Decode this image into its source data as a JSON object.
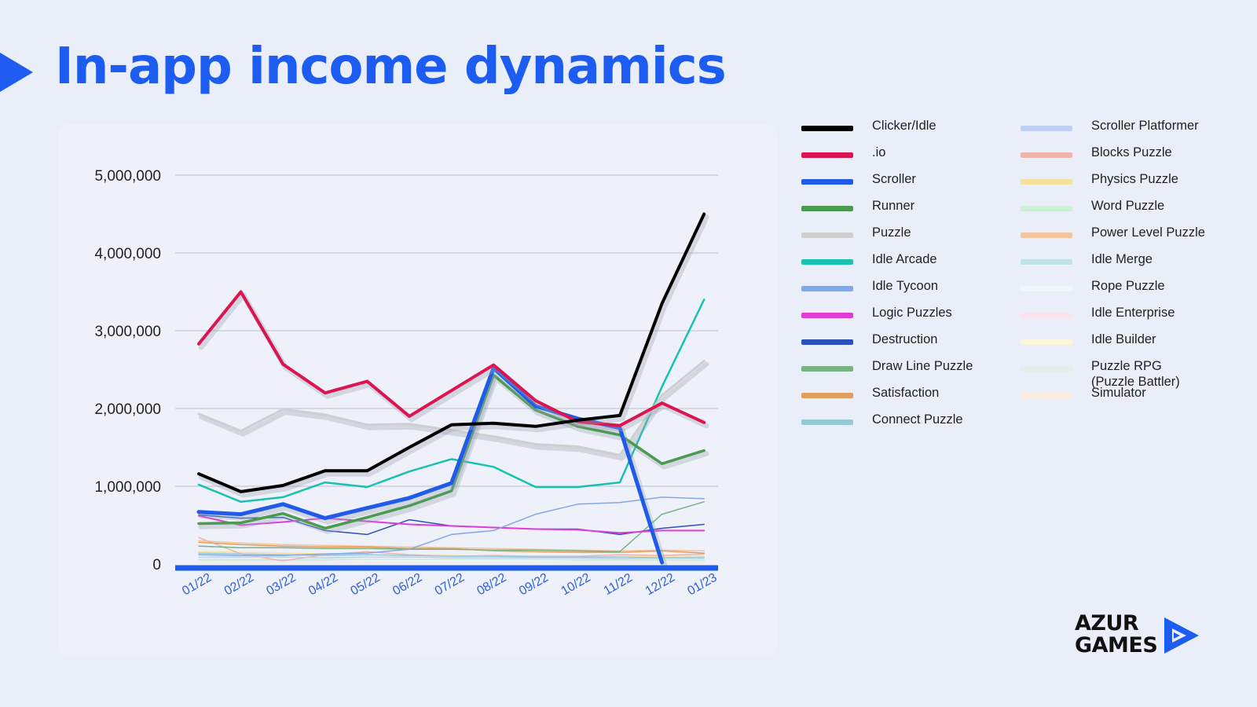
{
  "page": {
    "title": "In-app income dynamics"
  },
  "logo": {
    "text": "AZUR\nGAMES",
    "icon": "azur-play-icon",
    "color": "#1d5cf0"
  },
  "legend": [
    {
      "label": "Clicker/Idle",
      "color": "#000000"
    },
    {
      "label": ".io",
      "color": "#dc1450"
    },
    {
      "label": "Scroller",
      "color": "#1f5be8"
    },
    {
      "label": "Runner",
      "color": "#4a9a50"
    },
    {
      "label": "Puzzle",
      "color": "#cfcfcf"
    },
    {
      "label": "Idle Arcade",
      "color": "#19c2b0"
    },
    {
      "label": "Idle Tycoon",
      "color": "#85a6e6"
    },
    {
      "label": "Logic Puzzles",
      "color": "#e03cd6"
    },
    {
      "label": "Destruction",
      "color": "#2a52b8"
    },
    {
      "label": "Draw Line Puzzle",
      "color": "#78b483"
    },
    {
      "label": "Satisfaction",
      "color": "#e39d5d"
    },
    {
      "label": "Connect Puzzle",
      "color": "#96c9d6"
    },
    {
      "label": "Scroller Platformer",
      "color": "#bcd0f4"
    },
    {
      "label": "Blocks Puzzle",
      "color": "#efb5ac"
    },
    {
      "label": "Physics Puzzle",
      "color": "#f4e29c"
    },
    {
      "label": "Word Puzzle",
      "color": "#cdeed8"
    },
    {
      "label": "Power Level Puzzle",
      "color": "#f3c4a0"
    },
    {
      "label": "Idle Merge",
      "color": "#bfe3e9"
    },
    {
      "label": "Rope Puzzle",
      "color": "#f3f5fb"
    },
    {
      "label": "Idle Enterprise",
      "color": "#fbe3ec"
    },
    {
      "label": "Idle Builder",
      "color": "#fbf6da"
    },
    {
      "label": "Puzzle RPG\n(Puzzle Battler)",
      "color": "#e5ece9"
    },
    {
      "label": "Simulator",
      "color": "#fbece0"
    }
  ],
  "chart_data": {
    "type": "line",
    "title": "In-app income dynamics",
    "xlabel": "",
    "ylabel": "",
    "categories": [
      "01/22",
      "02/22",
      "03/22",
      "04/22",
      "05/22",
      "06/22",
      "07/22",
      "08/22",
      "09/22",
      "10/22",
      "11/22",
      "12/22",
      "01/23"
    ],
    "ylim": [
      0,
      5000000
    ],
    "yticks": [
      0,
      1000000,
      2000000,
      3000000,
      4000000,
      5000000
    ],
    "ytick_labels": [
      "0",
      "1,000,000",
      "2,000,000",
      "3,000,000",
      "4,000,000",
      "5,000,000"
    ],
    "grid": true,
    "legend_position": "right",
    "axis_color": "#1f5be8",
    "series": [
      {
        "name": "Clicker/Idle",
        "color": "#000000",
        "width": 4,
        "values": [
          1160000,
          930000,
          1010000,
          1200000,
          1200000,
          1500000,
          1790000,
          1810000,
          1770000,
          1850000,
          1910000,
          3350000,
          4500000
        ]
      },
      {
        "name": ".io",
        "color": "#dc1450",
        "width": 4,
        "values": [
          2830000,
          3500000,
          2570000,
          2200000,
          2350000,
          1900000,
          2230000,
          2560000,
          2100000,
          1830000,
          1780000,
          2070000,
          1820000
        ]
      },
      {
        "name": "Scroller",
        "color": "#1f5be8",
        "width": 5,
        "values": [
          670000,
          640000,
          770000,
          590000,
          720000,
          850000,
          1040000,
          2520000,
          2030000,
          1870000,
          1750000,
          20000,
          null
        ]
      },
      {
        "name": "Runner",
        "color": "#4a9a50",
        "width": 3.5,
        "values": [
          520000,
          530000,
          650000,
          460000,
          600000,
          750000,
          940000,
          2430000,
          1980000,
          1770000,
          1660000,
          1290000,
          1460000
        ]
      },
      {
        "name": "Puzzle",
        "color": "#cfcfcf",
        "width": 3,
        "values": [
          1930000,
          1710000,
          1990000,
          1920000,
          1790000,
          1800000,
          1720000,
          1640000,
          1540000,
          1510000,
          1400000,
          2170000,
          2610000
        ]
      },
      {
        "name": "Idle Arcade",
        "color": "#19c2b0",
        "width": 2.5,
        "values": [
          1020000,
          800000,
          860000,
          1050000,
          990000,
          1190000,
          1350000,
          1250000,
          990000,
          990000,
          1050000,
          2280000,
          3400000
        ]
      },
      {
        "name": "Idle Tycoon",
        "color": "#85a6e6",
        "width": 1.5,
        "values": [
          120000,
          110000,
          110000,
          130000,
          140000,
          190000,
          380000,
          430000,
          640000,
          770000,
          790000,
          860000,
          840000
        ]
      },
      {
        "name": "Logic Puzzles",
        "color": "#e03cd6",
        "width": 2,
        "values": [
          620000,
          500000,
          540000,
          590000,
          550000,
          510000,
          490000,
          470000,
          450000,
          440000,
          400000,
          430000,
          430000
        ]
      },
      {
        "name": "Destruction",
        "color": "#2a52b8",
        "width": 1.5,
        "values": [
          630000,
          590000,
          600000,
          430000,
          380000,
          570000,
          490000,
          470000,
          450000,
          450000,
          380000,
          460000,
          510000
        ]
      },
      {
        "name": "Draw Line Puzzle",
        "color": "#78b483",
        "width": 1.5,
        "values": [
          230000,
          210000,
          210000,
          200000,
          200000,
          190000,
          190000,
          180000,
          180000,
          170000,
          160000,
          640000,
          800000
        ]
      },
      {
        "name": "Satisfaction",
        "color": "#e39d5d",
        "width": 1.5,
        "values": [
          280000,
          250000,
          230000,
          220000,
          220000,
          200000,
          200000,
          170000,
          160000,
          150000,
          150000,
          170000,
          140000
        ]
      },
      {
        "name": "Connect Puzzle",
        "color": "#96c9d6",
        "width": 1.5,
        "values": [
          140000,
          130000,
          120000,
          110000,
          120000,
          110000,
          100000,
          100000,
          90000,
          90000,
          90000,
          80000,
          80000
        ]
      },
      {
        "name": "Scroller Platformer",
        "color": "#bcd0f4",
        "width": 1.5,
        "values": [
          90000,
          90000,
          90000,
          80000,
          90000,
          90000,
          80000,
          80000,
          80000,
          80000,
          70000,
          80000,
          90000
        ]
      },
      {
        "name": "Blocks Puzzle",
        "color": "#efb5ac",
        "width": 1.5,
        "values": [
          340000,
          130000,
          40000,
          120000,
          160000,
          120000,
          100000,
          110000,
          100000,
          100000,
          120000,
          110000,
          130000
        ]
      },
      {
        "name": "Physics Puzzle",
        "color": "#f4e29c",
        "width": 1.5,
        "values": [
          160000,
          150000,
          140000,
          130000,
          120000,
          110000,
          110000,
          100000,
          100000,
          90000,
          90000,
          100000,
          110000
        ]
      },
      {
        "name": "Word Puzzle",
        "color": "#cdeed8",
        "width": 1.5,
        "values": [
          60000,
          60000,
          60000,
          60000,
          60000,
          60000,
          60000,
          60000,
          60000,
          60000,
          60000,
          60000,
          60000
        ]
      },
      {
        "name": "Power Level Puzzle",
        "color": "#f3c4a0",
        "width": 1.5,
        "values": [
          300000,
          270000,
          250000,
          240000,
          230000,
          220000,
          210000,
          200000,
          190000,
          180000,
          170000,
          180000,
          170000
        ]
      },
      {
        "name": "Idle Merge",
        "color": "#bfe3e9",
        "width": 1.5,
        "values": [
          50000,
          50000,
          50000,
          50000,
          60000,
          60000,
          60000,
          60000,
          60000,
          50000,
          50000,
          50000,
          50000
        ]
      },
      {
        "name": "Rope Puzzle",
        "color": "#f3f5fb",
        "width": 1.5,
        "values": [
          40000,
          40000,
          40000,
          40000,
          40000,
          40000,
          40000,
          40000,
          40000,
          40000,
          40000,
          40000,
          40000
        ]
      },
      {
        "name": "Idle Enterprise",
        "color": "#fbe3ec",
        "width": 1.5,
        "values": [
          30000,
          30000,
          30000,
          30000,
          30000,
          30000,
          30000,
          30000,
          30000,
          30000,
          30000,
          30000,
          30000
        ]
      },
      {
        "name": "Idle Builder",
        "color": "#fbf6da",
        "width": 1.5,
        "values": [
          30000,
          30000,
          30000,
          30000,
          30000,
          30000,
          30000,
          30000,
          30000,
          30000,
          30000,
          30000,
          30000
        ]
      },
      {
        "name": "Puzzle RPG\n(Puzzle Battler)",
        "color": "#e5ece9",
        "width": 1.5,
        "values": [
          20000,
          20000,
          20000,
          20000,
          20000,
          20000,
          20000,
          20000,
          20000,
          20000,
          20000,
          20000,
          20000
        ]
      },
      {
        "name": "Simulator",
        "color": "#fbece0",
        "width": 1.5,
        "values": [
          20000,
          20000,
          20000,
          20000,
          20000,
          20000,
          20000,
          20000,
          20000,
          20000,
          20000,
          20000,
          20000
        ]
      }
    ]
  }
}
